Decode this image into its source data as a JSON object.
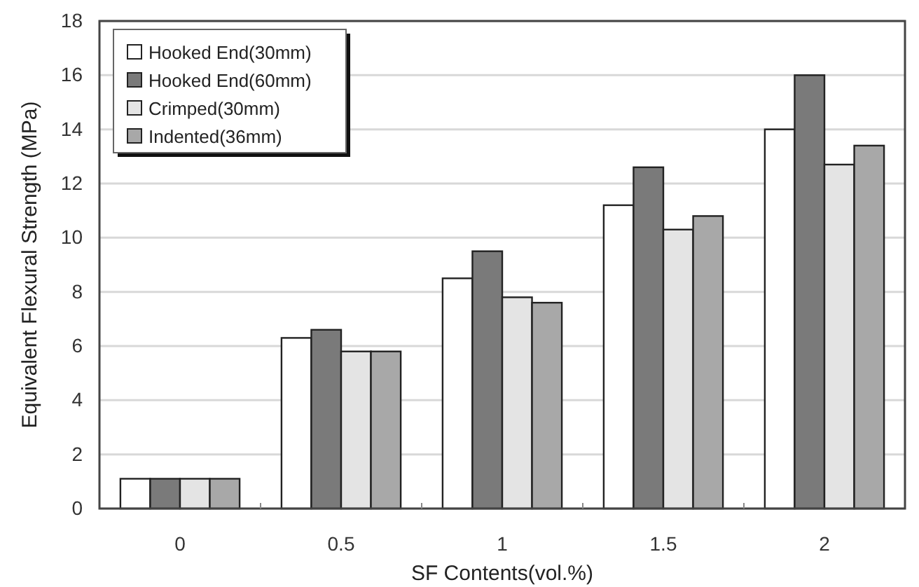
{
  "chart_data": {
    "type": "bar",
    "xlabel": "SF Contents(vol.%)",
    "ylabel": "Equivalent Flexural Strength (MPa)",
    "categories": [
      "0",
      "0.5",
      "1",
      "1.5",
      "2"
    ],
    "series": [
      {
        "name": "Hooked End(30mm)",
        "color": "#ffffff",
        "values": [
          1.1,
          6.3,
          8.5,
          11.2,
          14.0
        ]
      },
      {
        "name": "Hooked End(60mm)",
        "color": "#7a7a7a",
        "values": [
          1.1,
          6.6,
          9.5,
          12.6,
          16.0
        ]
      },
      {
        "name": "Crimped(30mm)",
        "color": "#e4e4e4",
        "values": [
          1.1,
          5.8,
          7.8,
          10.3,
          12.7
        ]
      },
      {
        "name": "Indented(36mm)",
        "color": "#a8a8a8",
        "values": [
          1.1,
          5.8,
          7.6,
          10.8,
          13.4
        ]
      }
    ],
    "ylim": [
      0,
      18
    ],
    "yticks": [
      0,
      2,
      4,
      6,
      8,
      10,
      12,
      14,
      16,
      18
    ],
    "grid": "y",
    "legend": "top left"
  }
}
